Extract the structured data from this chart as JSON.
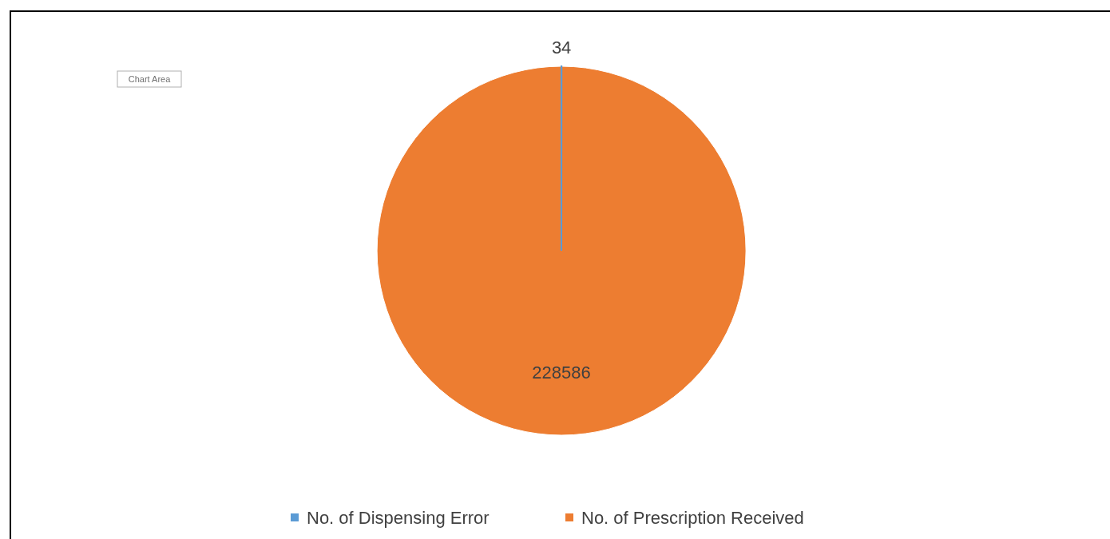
{
  "chart_data": {
    "type": "pie",
    "categories": [
      "No. of Dispensing Error",
      "No. of Prescription Received"
    ],
    "values": [
      34,
      228586
    ],
    "colors": [
      "#5b9bd5",
      "#ed7d31"
    ],
    "data_labels": true,
    "legend": "bottom",
    "annotations": [
      "Chart Area"
    ]
  }
}
